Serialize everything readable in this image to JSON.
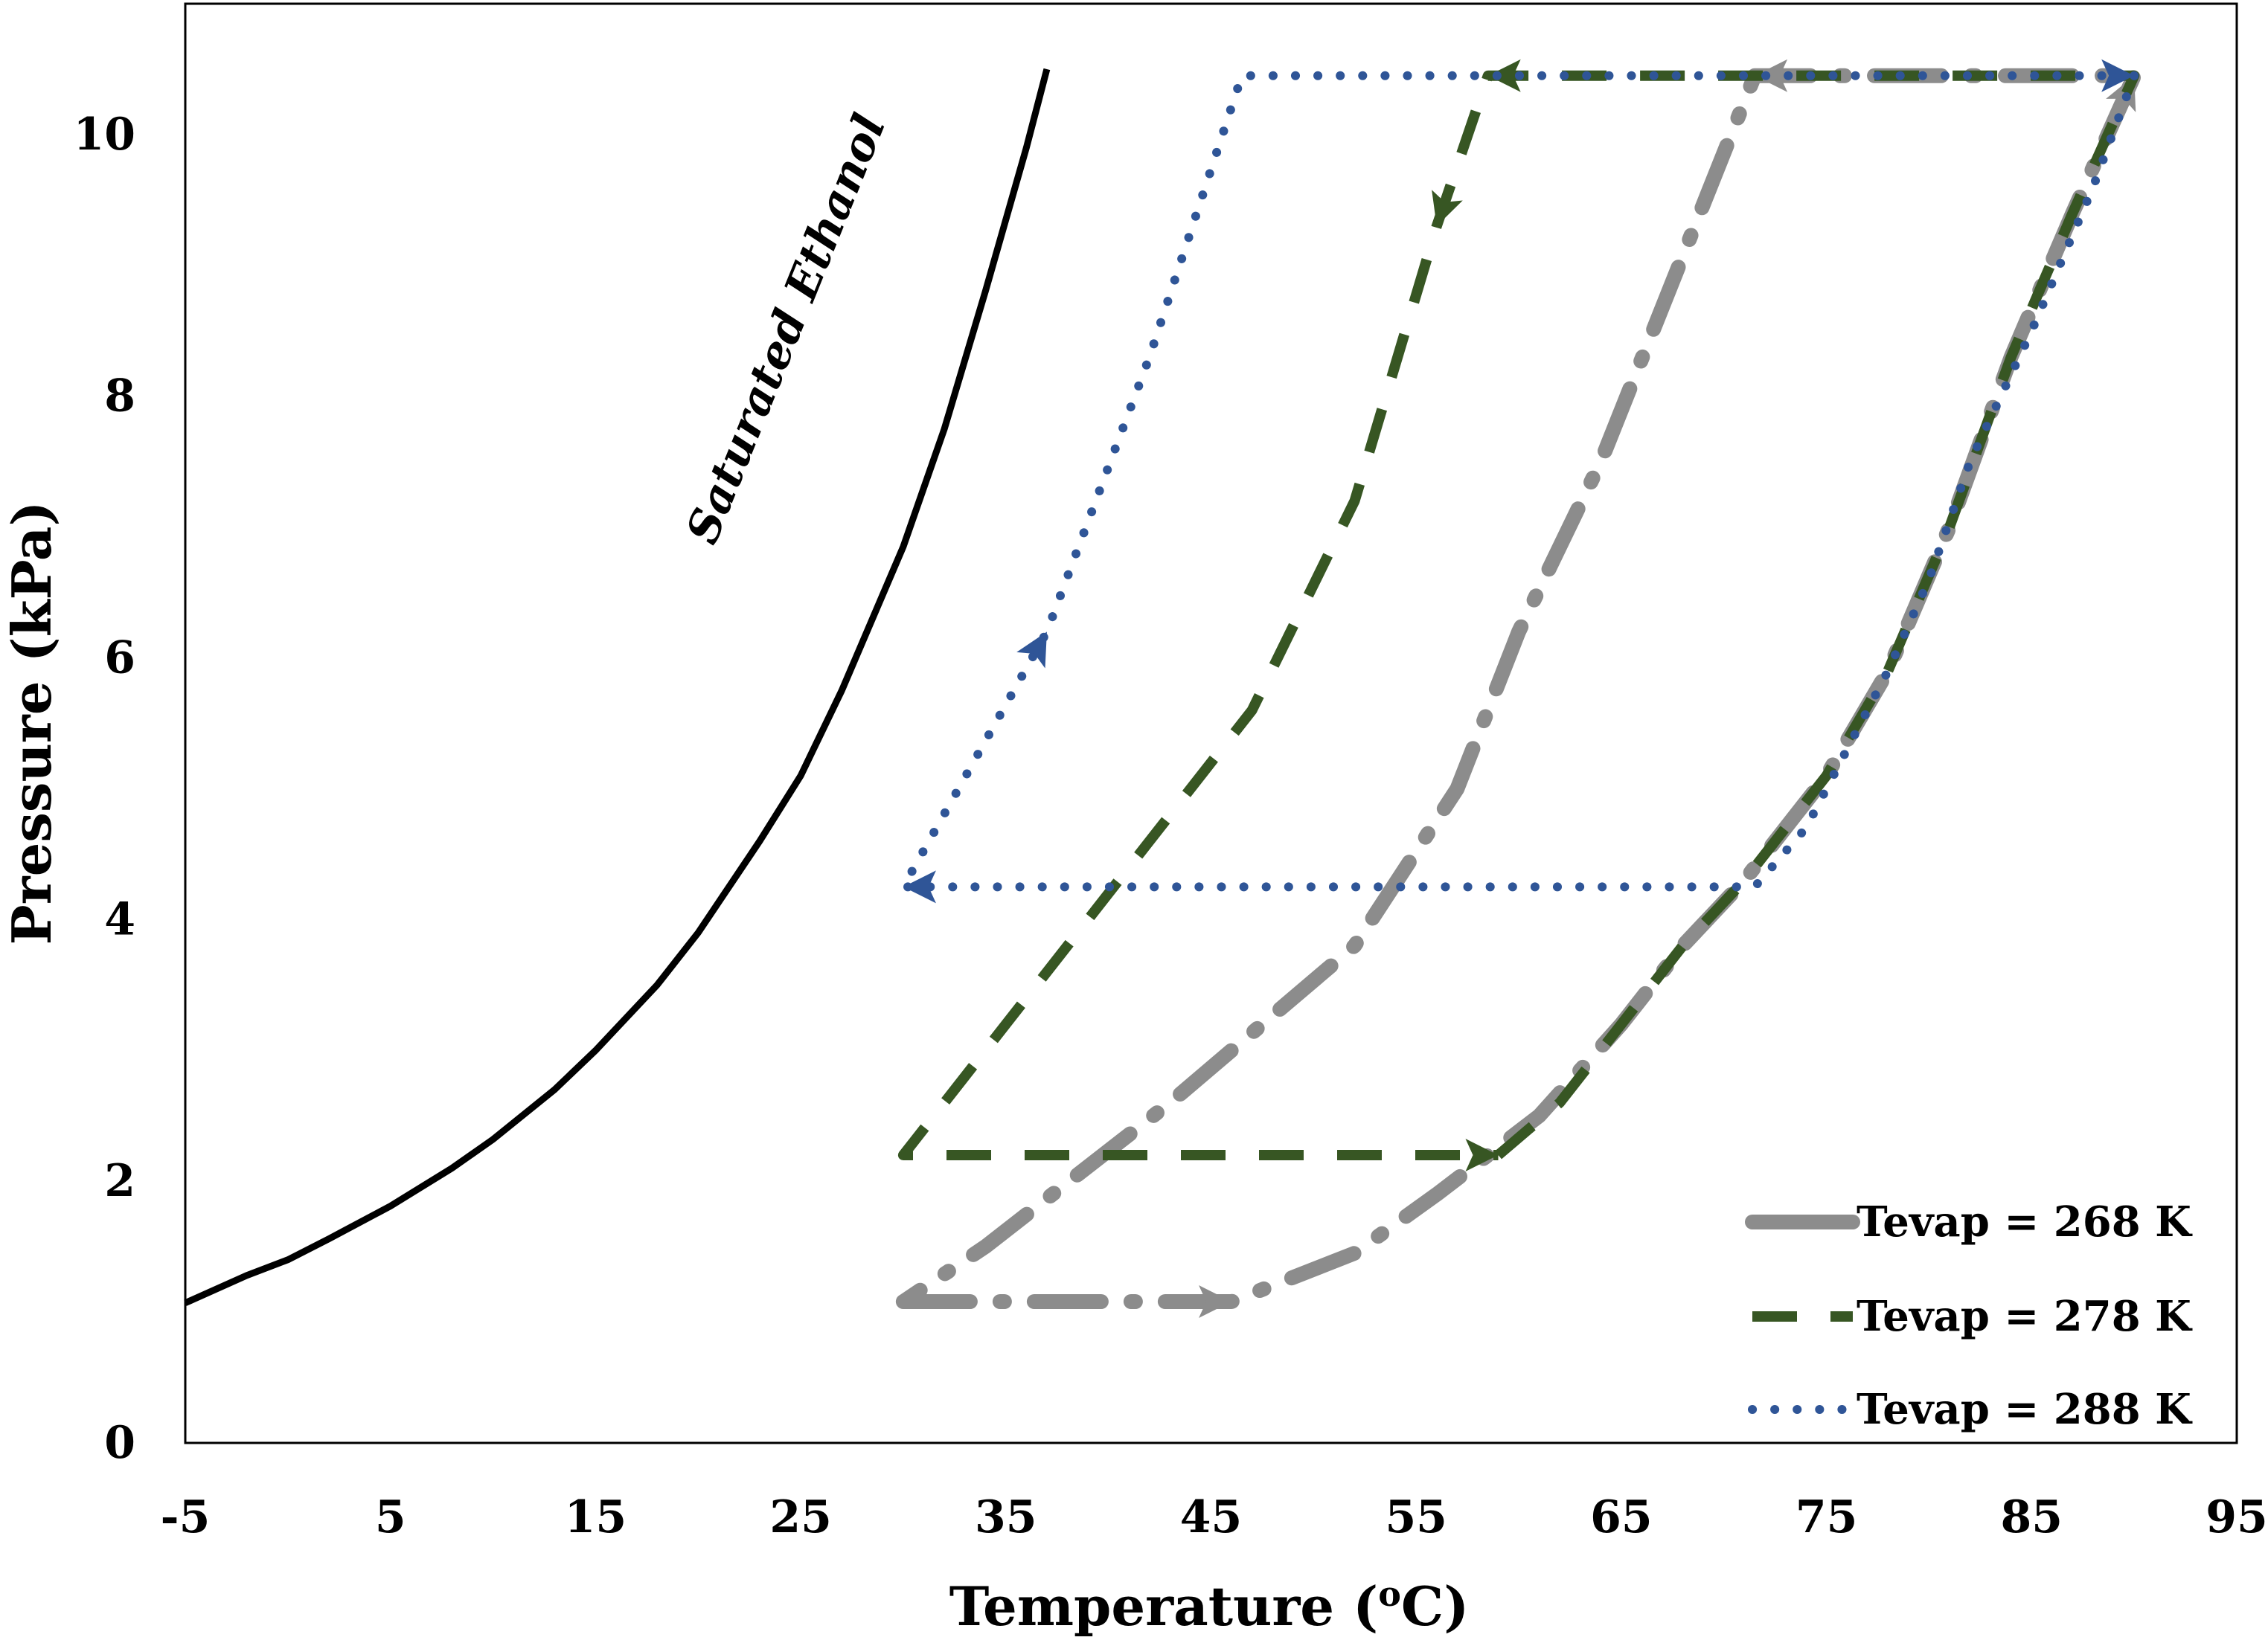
{
  "chart_data": {
    "type": "line",
    "title": "",
    "xlabel": "Temperature (",
    "xlabel_sup": "o",
    "xlabel_unit": "C)",
    "ylabel": "Pressure (kPa)",
    "xlim": [
      -5,
      95
    ],
    "ylim": [
      0,
      11
    ],
    "x_ticks": [
      -5,
      5,
      15,
      25,
      35,
      45,
      55,
      65,
      75,
      85,
      95
    ],
    "x_tick_labels": [
      "-5",
      "5",
      "15",
      "25",
      "35",
      "45",
      "55",
      "65",
      "75",
      "85",
      "95"
    ],
    "y_ticks": [
      0,
      2,
      4,
      6,
      8,
      10
    ],
    "y_tick_labels": [
      "0",
      "2",
      "4",
      "6",
      "8",
      "10"
    ],
    "grid": false,
    "legend_position": "bottom-right",
    "annotation": "Saturated Ethanol",
    "saturation_curve": {
      "color": "#000000",
      "points": [
        [
          -5,
          1.07
        ],
        [
          -2,
          1.28
        ],
        [
          0,
          1.4
        ],
        [
          2,
          1.56
        ],
        [
          5,
          1.81
        ],
        [
          8,
          2.1
        ],
        [
          10,
          2.32
        ],
        [
          13,
          2.7
        ],
        [
          15,
          3.0
        ],
        [
          18,
          3.5
        ],
        [
          20,
          3.9
        ],
        [
          23,
          4.6
        ],
        [
          25,
          5.1
        ],
        [
          27,
          5.75
        ],
        [
          30,
          6.85
        ],
        [
          32,
          7.75
        ],
        [
          34,
          8.8
        ],
        [
          36,
          9.9
        ],
        [
          37,
          10.5
        ]
      ]
    },
    "series": [
      {
        "name": "Tevap = 268 K",
        "color": "#8c8c8c",
        "points": [
          [
            30,
            1.08
          ],
          [
            46,
            1.08
          ],
          [
            52,
            1.45
          ],
          [
            56,
            1.9
          ],
          [
            61,
            2.5
          ],
          [
            65,
            3.2
          ],
          [
            68,
            3.8
          ],
          [
            71,
            4.3
          ],
          [
            75,
            5.1
          ],
          [
            78,
            5.9
          ],
          [
            81,
            7.0
          ],
          [
            84,
            8.3
          ],
          [
            87,
            9.4
          ],
          [
            90,
            10.45
          ],
          [
            71.5,
            10.45
          ],
          [
            64,
            7.5
          ],
          [
            60,
            6.2
          ],
          [
            57,
            5.0
          ],
          [
            52,
            3.8
          ],
          [
            43,
            2.6
          ],
          [
            34,
            1.5
          ],
          [
            30,
            1.08
          ]
        ]
      },
      {
        "name": "Tevap = 278 K",
        "color": "#375623",
        "points": [
          [
            59,
            2.2
          ],
          [
            62,
            2.6
          ],
          [
            65,
            3.2
          ],
          [
            68,
            3.8
          ],
          [
            71,
            4.3
          ],
          [
            75,
            5.1
          ],
          [
            78,
            5.9
          ],
          [
            81,
            7.0
          ],
          [
            84,
            8.3
          ],
          [
            87,
            9.4
          ],
          [
            90,
            10.45
          ],
          [
            58.5,
            10.45
          ],
          [
            56,
            9.3
          ],
          [
            52,
            7.2
          ],
          [
            47,
            5.6
          ],
          [
            40,
            4.2
          ],
          [
            35,
            3.2
          ],
          [
            30,
            2.2
          ],
          [
            59,
            2.2
          ]
        ]
      },
      {
        "name": "Tevap = 288 K",
        "color": "#2f5597",
        "points": [
          [
            90,
            10.45
          ],
          [
            88,
            9.6
          ],
          [
            85,
            8.5
          ],
          [
            82,
            7.5
          ],
          [
            80,
            6.6
          ],
          [
            78,
            5.9
          ],
          [
            76,
            5.3
          ],
          [
            74,
            4.7
          ],
          [
            71.5,
            4.25
          ],
          [
            30,
            4.25
          ],
          [
            37,
            6.2
          ],
          [
            42,
            8.3
          ],
          [
            46.5,
            10.45
          ],
          [
            90,
            10.45
          ]
        ]
      }
    ]
  }
}
